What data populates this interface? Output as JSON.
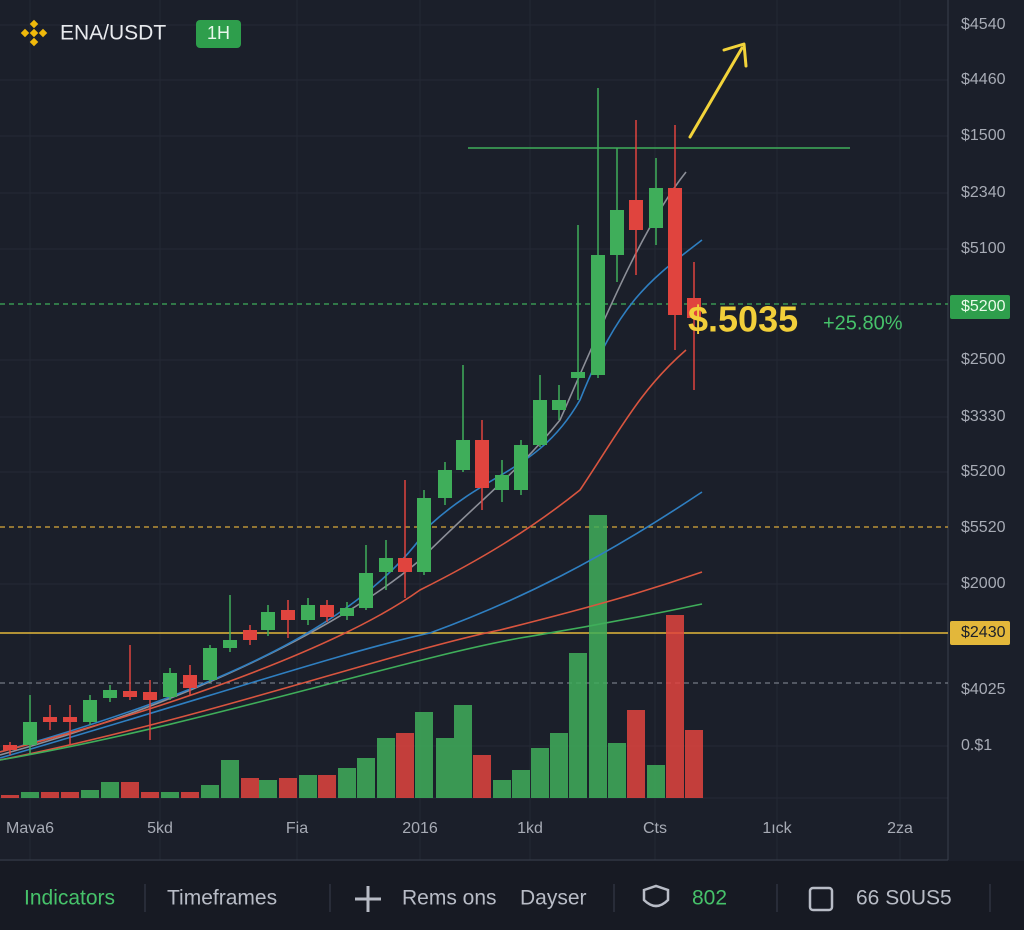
{
  "header": {
    "pair": "ENA/USDT",
    "interval": "1H"
  },
  "price": {
    "last": "$.5035",
    "change": "+25.80%"
  },
  "price_axis": {
    "labels": [
      "$4540",
      "$4460",
      "$1500",
      "$2340",
      "$5100",
      "$5200",
      "$2500",
      "$3330",
      "$5200",
      "$5520",
      "$2000",
      "$2430",
      "$4025",
      "0.$1"
    ]
  },
  "time_axis": {
    "labels": [
      "Mava6",
      "5kd",
      "Fia",
      "2016",
      "1kd",
      "Cts",
      "1ıck",
      "2za"
    ]
  },
  "toolbar": {
    "items": [
      "Indicators",
      "Timeframes",
      "Rems ons",
      "Dayser",
      "802",
      "66 S0US5"
    ]
  }
}
